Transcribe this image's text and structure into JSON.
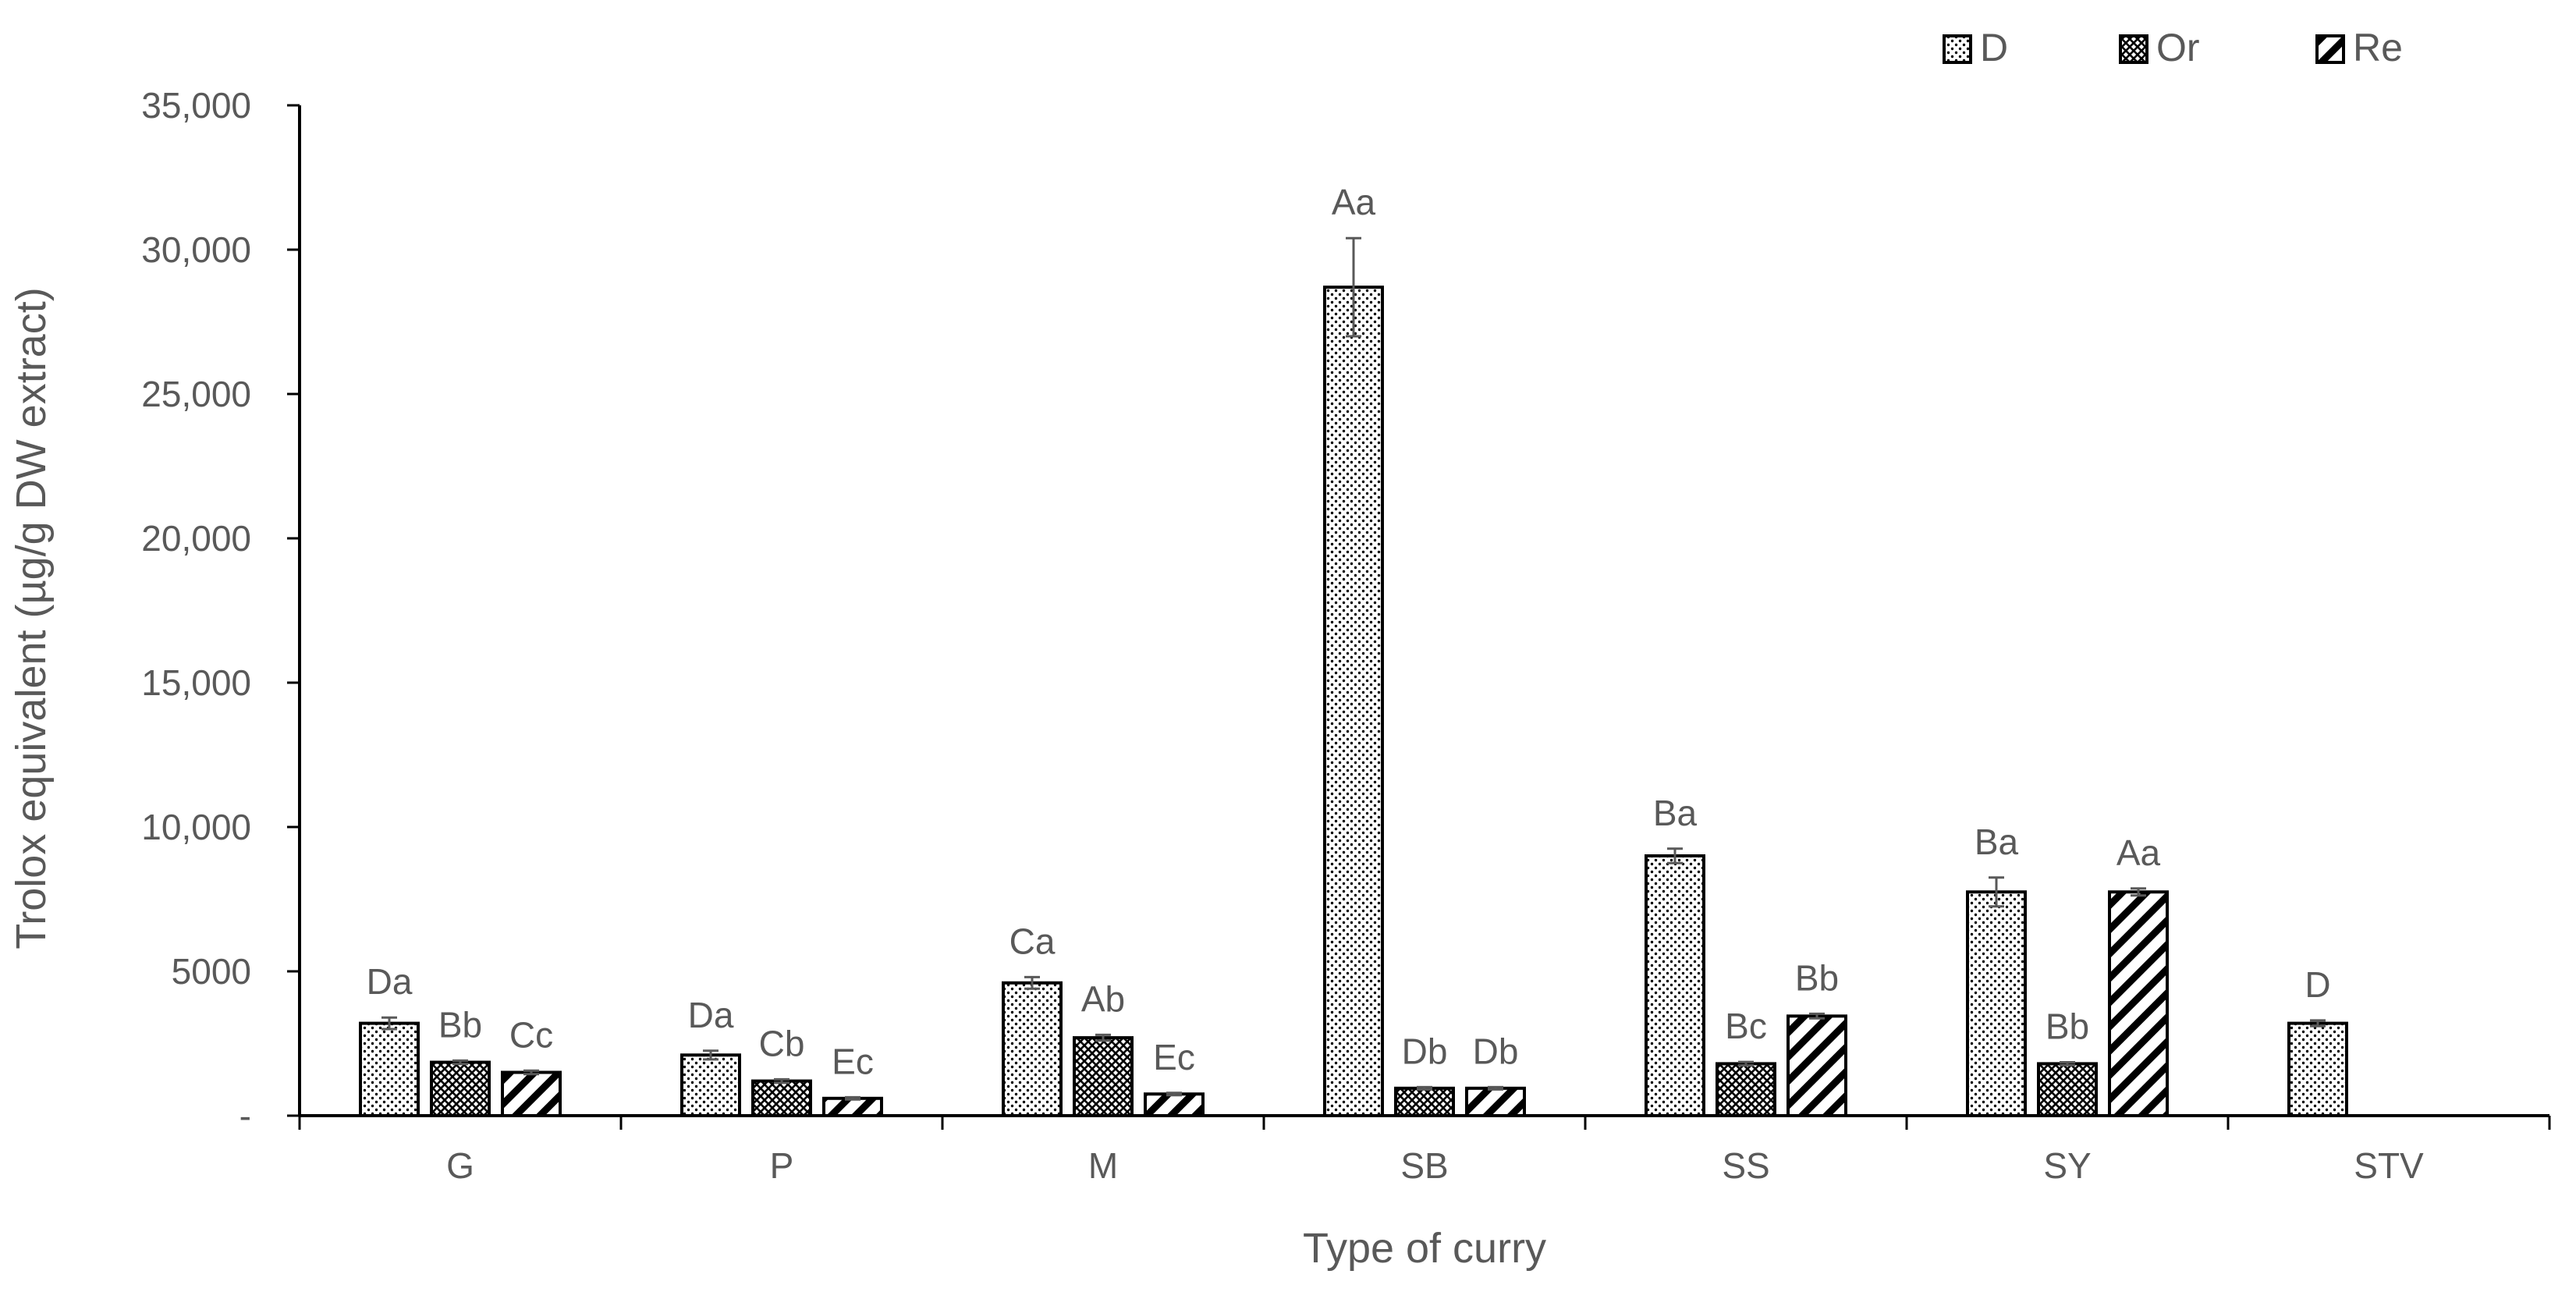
{
  "chart_data": {
    "type": "bar",
    "title": "",
    "xlabel": "Type of curry",
    "ylabel": "Trolox equivalent (µg/g DW extract)",
    "ylim": [
      0,
      35000
    ],
    "yticks": [
      0,
      5000,
      10000,
      15000,
      20000,
      25000,
      30000,
      35000
    ],
    "ytick_labels": [
      "-",
      "5000",
      "10,000",
      "15,000",
      "20,000",
      "25,000",
      "30,000",
      "35,000"
    ],
    "grid": false,
    "legend_position": "top-right",
    "categories": [
      "G",
      "P",
      "M",
      "SB",
      "SS",
      "SY",
      "STV"
    ],
    "series": [
      {
        "name": "D",
        "pattern": "dots",
        "values": [
          3200,
          2100,
          4600,
          28700,
          9000,
          7750,
          3200
        ],
        "errors": [
          200,
          150,
          200,
          1700,
          250,
          500,
          100
        ],
        "labels": [
          "Da",
          "Da",
          "Ca",
          "Aa",
          "Ba",
          "Ba",
          "D"
        ]
      },
      {
        "name": "Or",
        "pattern": "crosshatch",
        "values": [
          1850,
          1200,
          2700,
          950,
          1800,
          1800,
          null
        ],
        "errors": [
          60,
          60,
          100,
          40,
          60,
          50,
          null
        ],
        "labels": [
          "Bb",
          "Cb",
          "Ab",
          "Db",
          "Bc",
          "Bb",
          ""
        ]
      },
      {
        "name": "Re",
        "pattern": "diagonal",
        "values": [
          1500,
          600,
          750,
          950,
          3450,
          7750,
          null
        ],
        "errors": [
          60,
          40,
          40,
          40,
          80,
          120,
          null
        ],
        "labels": [
          "Cc",
          "Ec",
          "Ec",
          "Db",
          "Bb",
          "Aa",
          ""
        ]
      }
    ]
  }
}
